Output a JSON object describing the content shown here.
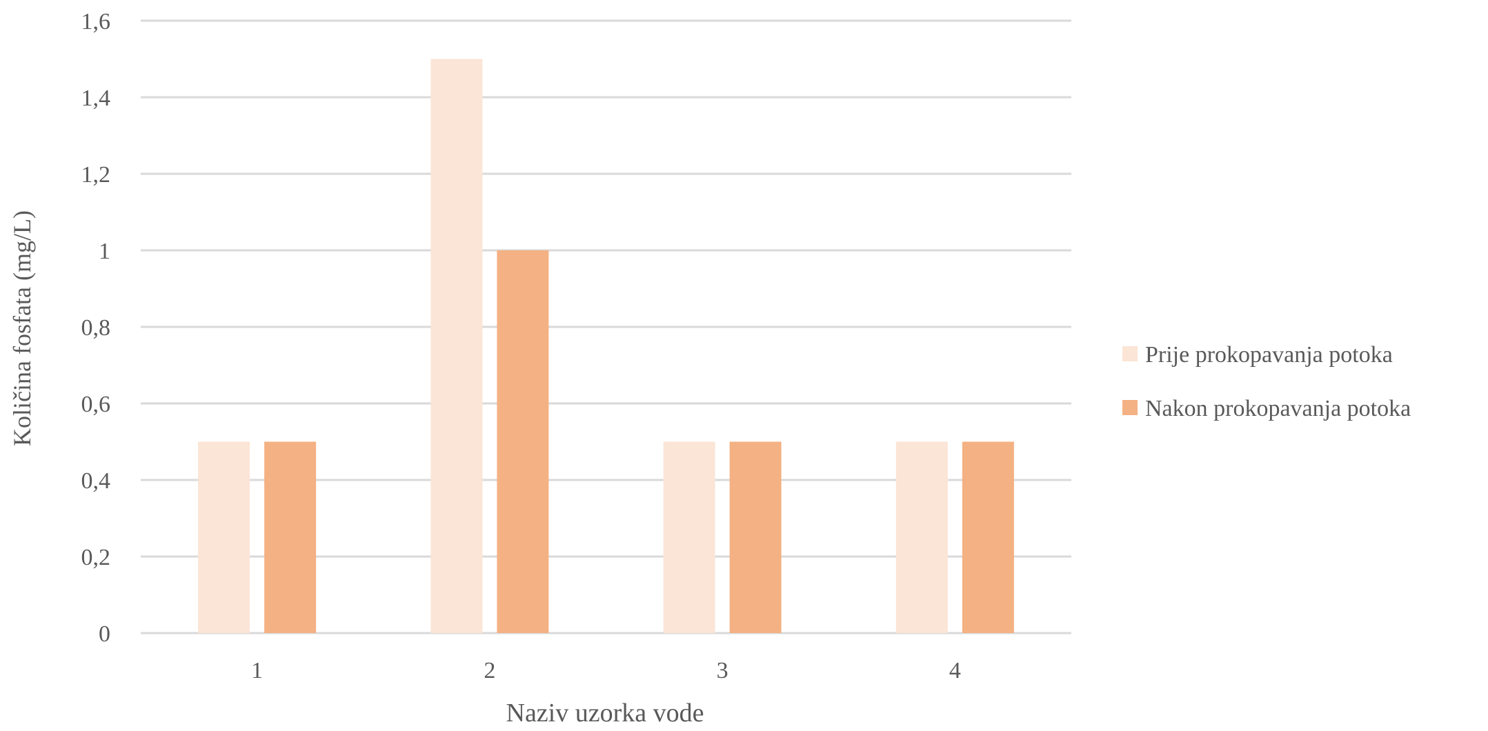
{
  "chart_data": {
    "type": "bar",
    "title": "",
    "xlabel": "Naziv uzorka vode",
    "ylabel": "Količina fosfata (mg/L)",
    "categories": [
      "1",
      "2",
      "3",
      "4"
    ],
    "ylim": [
      0,
      1.6
    ],
    "yticks": [
      0,
      0.2,
      0.4,
      0.6,
      0.8,
      1,
      1.2,
      1.4,
      1.6
    ],
    "ytick_labels": [
      "0",
      "0,2",
      "0,4",
      "0,6",
      "0,8",
      "1",
      "1,2",
      "1,4",
      "1,6"
    ],
    "grid": "horizontal",
    "legend_position": "right",
    "series": [
      {
        "name": "Prije prokopavanja potoka",
        "values": [
          0.5,
          1.5,
          0.5,
          0.5
        ],
        "color": "#FBE5D6"
      },
      {
        "name": "Nakon prokopavanja potoka",
        "values": [
          0.5,
          1.0,
          0.5,
          0.5
        ],
        "color": "#F4B183"
      }
    ],
    "colors": {
      "grid": "#D9D9D9",
      "text": "#595959"
    }
  }
}
